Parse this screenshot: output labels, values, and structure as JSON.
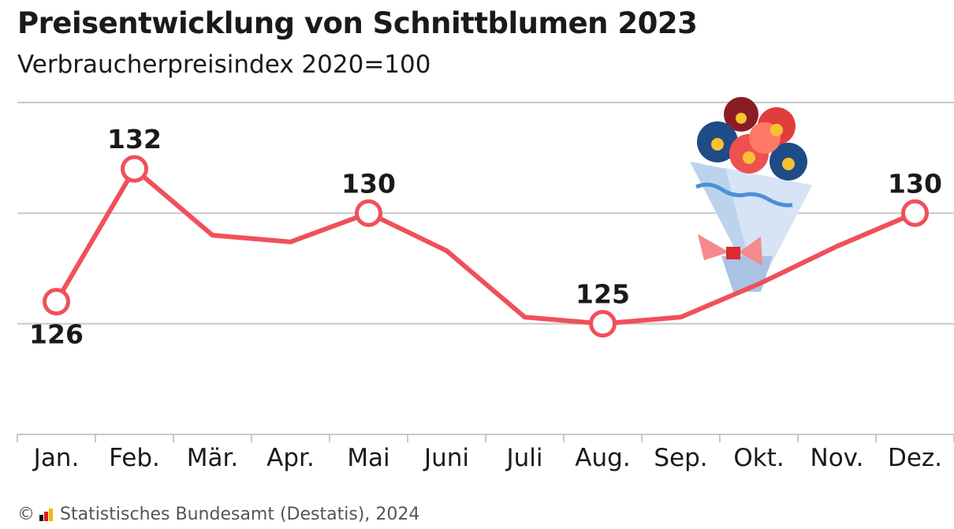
{
  "title": "Preisentwicklung von Schnittblumen 2023",
  "subtitle": "Verbraucherpreisindex 2020=100",
  "source": "Statistisches Bundesamt (Destatis), 2024",
  "copyright_symbol": "©",
  "icons": {
    "illustration": "flower-bouquet-icon",
    "logo": "destatis-logo-icon"
  },
  "colors": {
    "line": "#f0505a",
    "grid": "#c8c8c8",
    "text": "#1a1a1a",
    "flag": [
      "#111111",
      "#dd1c1c",
      "#f5b800"
    ]
  },
  "chart_data": {
    "type": "line",
    "categories": [
      "Jan.",
      "Feb.",
      "Mär.",
      "Apr.",
      "Mai",
      "Juni",
      "Juli",
      "Aug.",
      "Sep.",
      "Okt.",
      "Nov.",
      "Dez."
    ],
    "series": [
      {
        "values": [
          126,
          132,
          129,
          128.7,
          130,
          128.3,
          125.3,
          125,
          125.3,
          126.8,
          128.5,
          130
        ],
        "labeled": [
          0,
          1,
          4,
          7,
          11
        ],
        "labels": [
          "126",
          "132",
          "130",
          "125",
          "130"
        ]
      }
    ],
    "ylim": [
      120,
      135
    ],
    "grid": true,
    "legend": "none"
  }
}
